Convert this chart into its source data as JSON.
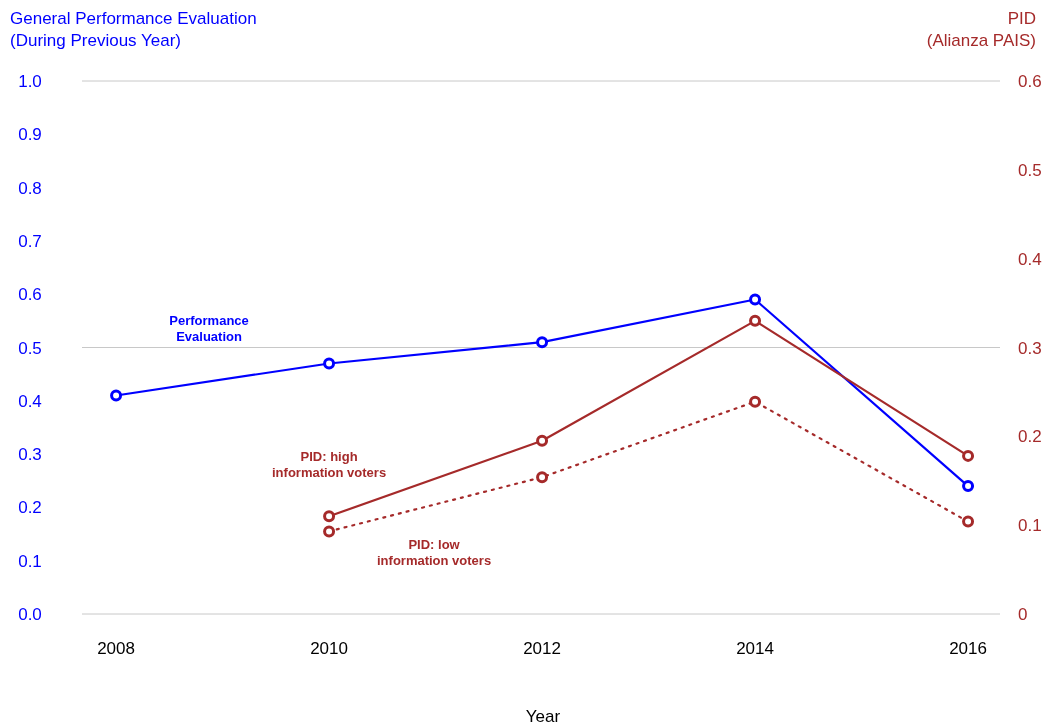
{
  "chart_data": {
    "type": "line",
    "xlabel": "Year",
    "ylabel": "General Performance Evaluation\n(During Previous Year)",
    "y2label": "PID\n(Alianza PAIS)",
    "x": [
      2008,
      2010,
      2012,
      2014,
      2016
    ],
    "xlim": [
      2007.68,
      2016.3
    ],
    "xticks": [
      2008,
      2010,
      2012,
      2014,
      2016
    ],
    "ylim": [
      0,
      1
    ],
    "yticks": [
      {
        "value": 0,
        "label": "0.0"
      },
      {
        "value": 0.1,
        "label": "0.1"
      },
      {
        "value": 0.2,
        "label": "0.2"
      },
      {
        "value": 0.3,
        "label": "0.3"
      },
      {
        "value": 0.4,
        "label": "0.4"
      },
      {
        "value": 0.5,
        "label": "0.5"
      },
      {
        "value": 0.6,
        "label": "0.6"
      },
      {
        "value": 0.7,
        "label": "0.7"
      },
      {
        "value": 0.8,
        "label": "0.8"
      },
      {
        "value": 0.9,
        "label": "0.9"
      },
      {
        "value": 1,
        "label": "1.0"
      }
    ],
    "y2lim": [
      0,
      0.6
    ],
    "y2ticks": [
      0,
      0.1,
      0.2,
      0.3,
      0.4,
      0.5,
      0.6
    ],
    "marker": "circle",
    "ref_lines": [
      {
        "axis": "y",
        "value": 0.5,
        "color": "#c8c8c8"
      }
    ],
    "series": [
      {
        "name": "Performance\nEvaluation",
        "color": "#0000ff",
        "values": [
          0.41,
          0.47,
          0.51,
          0.59,
          0.24
        ]
      },
      {
        "name": "PID: high\ninformation voters",
        "color": "#a52a2a",
        "axis": "y2",
        "values": [
          null,
          0.11,
          0.195,
          0.33,
          0.178
        ]
      },
      {
        "name": "PID: low\ninformation voters",
        "color": "#a52a2a",
        "axis": "y2",
        "line_style": "dotted",
        "values": [
          null,
          0.093,
          0.154,
          0.239,
          0.104
        ]
      }
    ]
  }
}
